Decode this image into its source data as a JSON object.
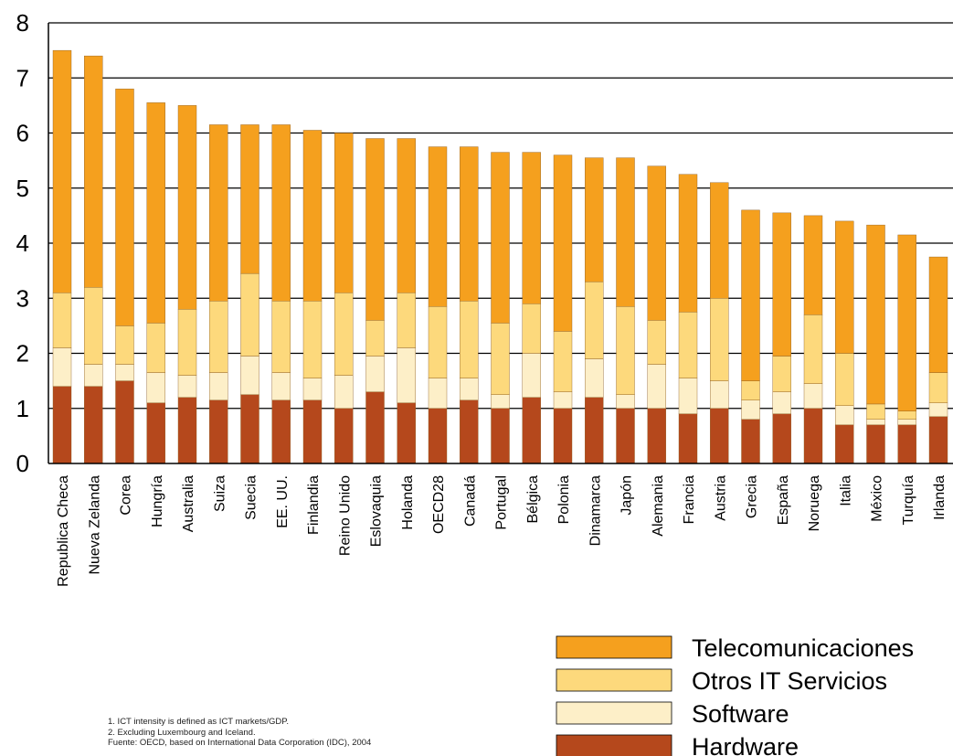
{
  "chart_data": {
    "type": "bar",
    "stacked": true,
    "title": "",
    "xlabel": "",
    "ylabel": "",
    "ylim": [
      0,
      8
    ],
    "yticks": [
      0,
      1,
      2,
      3,
      4,
      5,
      6,
      7,
      8
    ],
    "grid": true,
    "legend_position": "bottom-right",
    "categories": [
      "Republica Checa",
      "Nueva Zelanda",
      "Corea",
      "Hungría",
      "Australia",
      "Suiza",
      "Suecia",
      "EE. UU.",
      "Finlandia",
      "Reino Unido",
      "Eslovaquia",
      "Holanda",
      "OECD28",
      "Canadá",
      "Portugal",
      "Bélgica",
      "Polonia",
      "Dinamarca",
      "Japón",
      "Alemania",
      "Francia",
      "Austria",
      "Grecia",
      "España",
      "Noruega",
      "Italia",
      "México",
      "Turquía",
      "Irlanda"
    ],
    "series": [
      {
        "name": "Hardware",
        "color": "#b5481c",
        "values": [
          1.4,
          1.4,
          1.5,
          1.1,
          1.2,
          1.15,
          1.25,
          1.15,
          1.15,
          1.0,
          1.3,
          1.1,
          1.0,
          1.15,
          1.0,
          1.2,
          1.0,
          1.2,
          1.0,
          1.0,
          0.9,
          1.0,
          0.8,
          0.9,
          1.0,
          0.7,
          0.7,
          0.7,
          0.85
        ]
      },
      {
        "name": "Software",
        "color": "#fdefc8",
        "values": [
          0.7,
          0.4,
          0.3,
          0.55,
          0.4,
          0.5,
          0.7,
          0.5,
          0.4,
          0.6,
          0.65,
          1.0,
          0.55,
          0.4,
          0.25,
          0.8,
          0.3,
          0.7,
          0.25,
          0.8,
          0.65,
          0.5,
          0.35,
          0.4,
          0.45,
          0.35,
          0.1,
          0.1,
          0.25
        ]
      },
      {
        "name": "Otros IT Servicios",
        "color": "#fdd97c",
        "values": [
          1.0,
          1.4,
          0.7,
          0.9,
          1.2,
          1.3,
          1.5,
          1.3,
          1.4,
          1.5,
          0.65,
          1.0,
          1.3,
          1.4,
          1.3,
          0.9,
          1.1,
          1.4,
          1.6,
          0.8,
          1.2,
          1.5,
          0.35,
          0.65,
          1.25,
          0.95,
          0.28,
          0.15,
          0.55
        ]
      },
      {
        "name": "Telecomunicaciones",
        "color": "#f5a01e",
        "values": [
          4.4,
          4.2,
          4.3,
          4.0,
          3.7,
          3.2,
          2.7,
          3.2,
          3.1,
          2.9,
          3.3,
          2.8,
          2.9,
          2.8,
          3.1,
          2.75,
          3.2,
          2.25,
          2.7,
          2.8,
          2.5,
          2.1,
          3.1,
          2.6,
          1.8,
          2.4,
          3.25,
          3.2,
          2.1
        ]
      }
    ],
    "legend_order": [
      "Telecomunicaciones",
      "Otros IT Servicios",
      "Software",
      "Hardware"
    ]
  },
  "notes": [
    "1. ICT intensity is defined as ICT markets/GDP.",
    "2. Excluding Luxembourg and Iceland.",
    "Fuente: OECD, based on International Data Corporation (IDC), 2004"
  ]
}
